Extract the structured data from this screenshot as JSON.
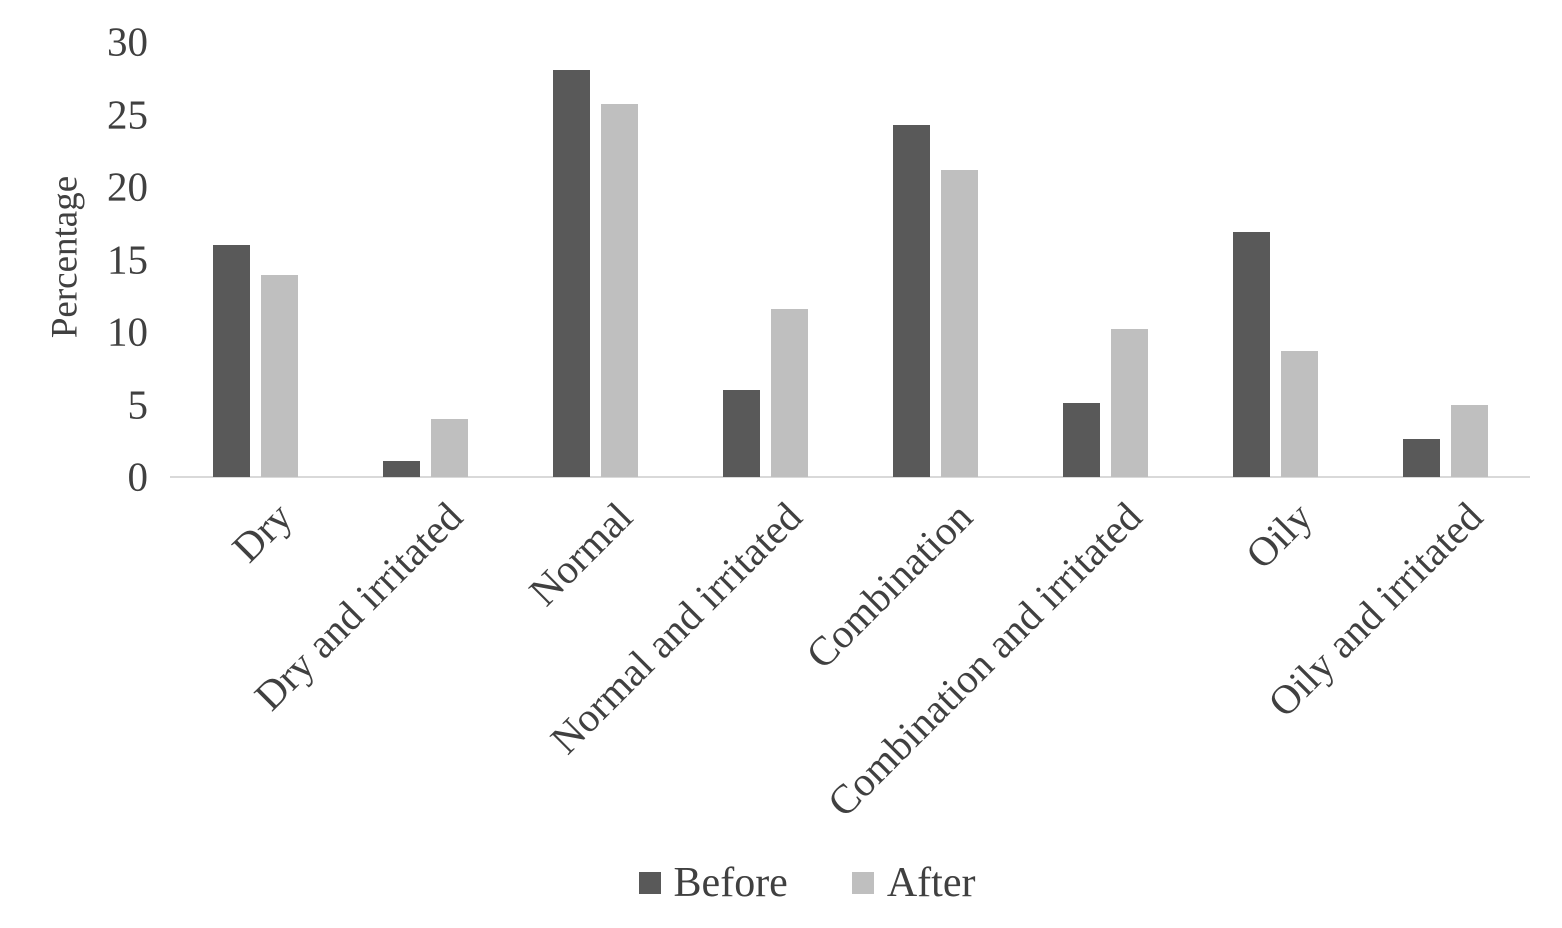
{
  "chart_data": {
    "type": "bar",
    "title": "",
    "ylabel": "Percentage",
    "xlabel": "",
    "categories": [
      "Dry",
      "Dry and irritated",
      "Normal",
      "Normal and irritated",
      "Combination",
      "Combination and irritated",
      "Oily",
      "Oily and irritated"
    ],
    "series": [
      {
        "name": "Before",
        "color": "#595959",
        "values": [
          16.0,
          1.1,
          28.1,
          6.0,
          24.3,
          5.1,
          16.9,
          2.6
        ]
      },
      {
        "name": "After",
        "color": "#bfbfbf",
        "values": [
          13.9,
          4.0,
          25.7,
          11.6,
          21.2,
          10.2,
          8.7,
          5.0
        ]
      }
    ],
    "ylim": [
      0,
      30
    ],
    "ytick_step": 5,
    "ytick_labels": [
      "0",
      "5",
      "10",
      "15",
      "20",
      "25",
      "30"
    ],
    "grid": false,
    "legend_position": "bottom",
    "axis_line_color": "#d9d9d9",
    "text_color": "#404040",
    "background_color": "#ffffff",
    "x_label_rotation_deg": 45
  }
}
